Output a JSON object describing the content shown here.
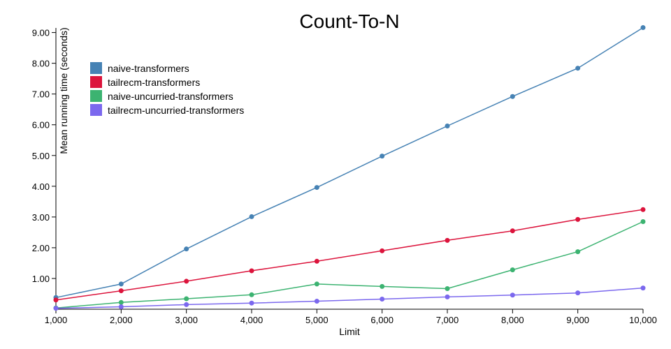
{
  "chart_data": {
    "type": "line",
    "title": "Count-To-N",
    "xlabel": "Limit",
    "ylabel": "Mean running time (seconds)",
    "x": [
      1000,
      2000,
      3000,
      4000,
      5000,
      6000,
      7000,
      8000,
      9000,
      10000
    ],
    "x_tick_labels": [
      "1,000",
      "2,000",
      "3,000",
      "4,000",
      "5,000",
      "6,000",
      "7,000",
      "8,000",
      "9,000",
      "10,000"
    ],
    "y_ticks": [
      1,
      2,
      3,
      4,
      5,
      6,
      7,
      8,
      9
    ],
    "y_tick_labels": [
      "1.00",
      "2.00",
      "3.00",
      "4.00",
      "5.00",
      "6.00",
      "7.00",
      "8.00",
      "9.00"
    ],
    "xlim": [
      1000,
      10000
    ],
    "ylim": [
      0,
      9.15
    ],
    "grid": false,
    "legend_position": "top-left",
    "series": [
      {
        "name": "naive-transformers",
        "color": "#4682b4",
        "values": [
          0.38,
          0.82,
          1.96,
          3.01,
          3.96,
          4.98,
          5.96,
          6.92,
          7.84,
          9.16
        ]
      },
      {
        "name": "tailrecm-transformers",
        "color": "#dc143c",
        "values": [
          0.3,
          0.6,
          0.91,
          1.25,
          1.56,
          1.9,
          2.24,
          2.55,
          2.92,
          3.24
        ]
      },
      {
        "name": "naive-uncurried-transformers",
        "color": "#3cb371",
        "values": [
          0.04,
          0.22,
          0.34,
          0.47,
          0.82,
          0.74,
          0.67,
          1.28,
          1.87,
          2.85
        ]
      },
      {
        "name": "tailrecm-uncurried-transformers",
        "color": "#7b68ee",
        "values": [
          0.03,
          0.08,
          0.15,
          0.2,
          0.26,
          0.33,
          0.4,
          0.46,
          0.53,
          0.69
        ]
      }
    ]
  }
}
